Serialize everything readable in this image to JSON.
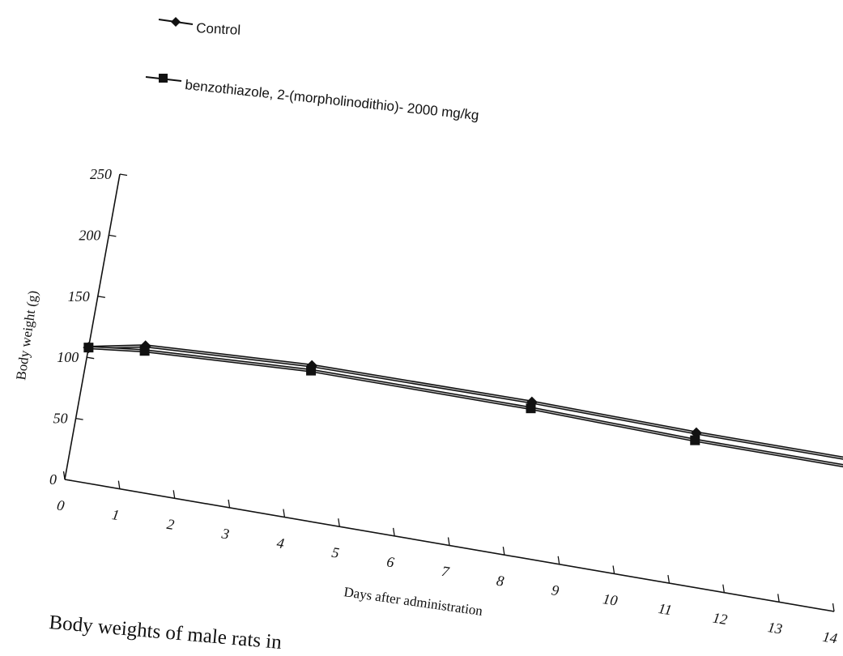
{
  "chart_data": {
    "type": "line",
    "title": "",
    "caption": "Body weights of male rats in",
    "xlabel": "Days after administration",
    "ylabel": "Body weight (g)",
    "xlim": [
      0,
      14
    ],
    "ylim": [
      0,
      250
    ],
    "x_ticks": [
      "0",
      "1",
      "2",
      "3",
      "4",
      "5",
      "6",
      "7",
      "8",
      "9",
      "10",
      "11",
      "12",
      "13",
      "14"
    ],
    "y_ticks": [
      "0",
      "50",
      "100",
      "150",
      "200",
      "250"
    ],
    "grid": false,
    "legend_position": "top-left",
    "series": [
      {
        "name": "Control",
        "marker": "diamond",
        "color": "#111111",
        "points": [
          {
            "x": 0,
            "y": 108
          },
          {
            "x": 1,
            "y": 117
          },
          {
            "x": 4,
            "y": 124
          },
          {
            "x": 8,
            "y": 125
          },
          {
            "x": 11,
            "y": 123
          },
          {
            "x": 14,
            "y": 123
          }
        ]
      },
      {
        "name": "benzothiazole, 2-(morpholinodithio)- 2000 mg/kg",
        "marker": "square",
        "color": "#111111",
        "points": [
          {
            "x": 0,
            "y": 108
          },
          {
            "x": 1,
            "y": 113
          },
          {
            "x": 4,
            "y": 120
          },
          {
            "x": 8,
            "y": 120
          },
          {
            "x": 11,
            "y": 117
          },
          {
            "x": 14,
            "y": 117
          }
        ]
      }
    ]
  }
}
